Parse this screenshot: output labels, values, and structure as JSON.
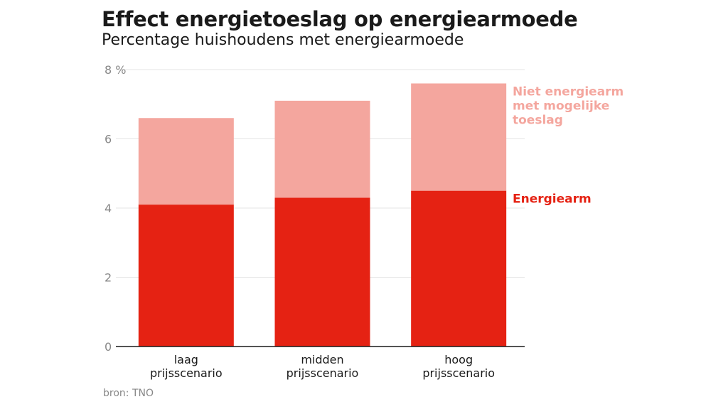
{
  "chart_data": {
    "type": "bar",
    "stacked": true,
    "title": "Effect energietoeslag op energiearmoede",
    "subtitle": "Percentage huishoudens met energiearmoede",
    "categories": [
      [
        "laag",
        "prijsscenario"
      ],
      [
        "midden",
        "prijsscenario"
      ],
      [
        "hoog",
        "prijsscenario"
      ]
    ],
    "series": [
      {
        "name": "Energiearm",
        "values": [
          4.1,
          4.3,
          4.5
        ],
        "color": "#e52213"
      },
      {
        "name": [
          "Niet energiearm",
          "met mogelijke",
          "toeslag"
        ],
        "values": [
          2.5,
          2.8,
          3.1
        ],
        "color": "#f4a69e"
      }
    ],
    "y_ticks": [
      0,
      2,
      4,
      6,
      8
    ],
    "y_unit": "%",
    "ylim": [
      0,
      8
    ],
    "grid": true,
    "legend": "right, labels beside top bar segments",
    "source": "bron: TNO"
  }
}
